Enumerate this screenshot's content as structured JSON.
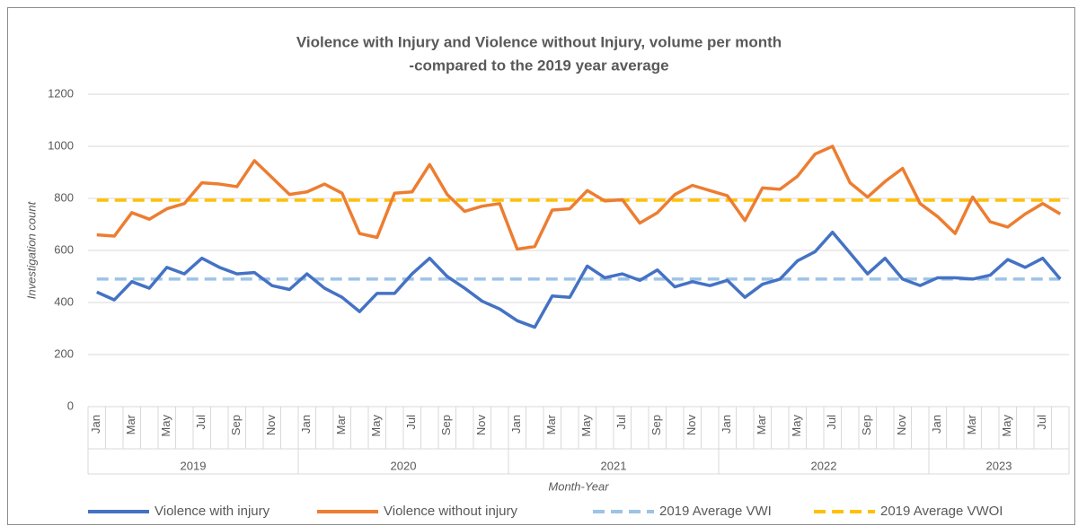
{
  "chart_data": {
    "type": "line",
    "title": [
      "Violence with Injury and Violence without Injury, volume per month",
      "-compared to the 2019 year average"
    ],
    "y_label": "Investigation count",
    "x_label": "Month-Year",
    "categories": [
      "Jan",
      null,
      "Mar",
      null,
      "May",
      null,
      "Jul",
      null,
      "Sep",
      null,
      "Nov",
      null,
      "Jan",
      null,
      "Mar",
      null,
      "May",
      null,
      "Jul",
      null,
      "Sep",
      null,
      "Nov",
      null,
      "Jan",
      null,
      "Mar",
      null,
      "May",
      null,
      "Jul",
      null,
      "Sep",
      null,
      "Nov",
      null,
      "Jan",
      null,
      "Mar",
      null,
      "May",
      null,
      "Jul",
      null,
      "Sep",
      null,
      "Nov",
      null,
      "Jan",
      null,
      "Mar",
      null,
      "May",
      null,
      "Jul",
      null
    ],
    "x_groups": [
      {
        "label": "2019",
        "start": 0,
        "end": 11
      },
      {
        "label": "2020",
        "start": 12,
        "end": 23
      },
      {
        "label": "2021",
        "start": 24,
        "end": 35
      },
      {
        "label": "2022",
        "start": 36,
        "end": 47
      },
      {
        "label": "2023",
        "start": 48,
        "end": 55
      }
    ],
    "ylim": [
      0,
      1200
    ],
    "yticks": [
      0,
      200,
      400,
      600,
      800,
      1000,
      1200
    ],
    "grid": true,
    "legend": "bottom",
    "series": [
      {
        "name": "Violence with injury",
        "color": "#4472c4",
        "dash": false,
        "values": [
          440,
          410,
          480,
          455,
          535,
          510,
          570,
          535,
          510,
          515,
          465,
          450,
          510,
          455,
          420,
          365,
          435,
          435,
          510,
          570,
          500,
          455,
          405,
          375,
          330,
          305,
          425,
          420,
          540,
          495,
          510,
          485,
          525,
          460,
          480,
          465,
          485,
          420,
          470,
          490,
          560,
          595,
          670,
          590,
          510,
          570,
          490,
          465,
          495,
          495,
          490,
          505,
          565,
          535,
          570,
          490
        ]
      },
      {
        "name": "Violence without injury",
        "color": "#ed7d31",
        "dash": false,
        "values": [
          660,
          655,
          745,
          720,
          760,
          780,
          860,
          855,
          845,
          945,
          880,
          815,
          825,
          855,
          820,
          665,
          650,
          820,
          825,
          930,
          815,
          750,
          770,
          780,
          605,
          615,
          755,
          760,
          830,
          790,
          795,
          705,
          745,
          815,
          850,
          830,
          810,
          715,
          840,
          835,
          885,
          970,
          1000,
          860,
          805,
          865,
          915,
          780,
          730,
          665,
          805,
          710,
          690,
          740,
          780,
          740
        ]
      },
      {
        "name": "2019 Average VWI",
        "color": "#9dc3e6",
        "dash": true,
        "values": [
          490,
          490,
          490,
          490,
          490,
          490,
          490,
          490,
          490,
          490,
          490,
          490,
          490,
          490,
          490,
          490,
          490,
          490,
          490,
          490,
          490,
          490,
          490,
          490,
          490,
          490,
          490,
          490,
          490,
          490,
          490,
          490,
          490,
          490,
          490,
          490,
          490,
          490,
          490,
          490,
          490,
          490,
          490,
          490,
          490,
          490,
          490,
          490,
          490,
          490,
          490,
          490,
          490,
          490,
          490,
          490
        ]
      },
      {
        "name": "2019 Average VWOI",
        "color": "#ffc000",
        "dash": true,
        "values": [
          793,
          793,
          793,
          793,
          793,
          793,
          793,
          793,
          793,
          793,
          793,
          793,
          793,
          793,
          793,
          793,
          793,
          793,
          793,
          793,
          793,
          793,
          793,
          793,
          793,
          793,
          793,
          793,
          793,
          793,
          793,
          793,
          793,
          793,
          793,
          793,
          793,
          793,
          793,
          793,
          793,
          793,
          793,
          793,
          793,
          793,
          793,
          793,
          793,
          793,
          793,
          793,
          793,
          793,
          793,
          793
        ]
      }
    ]
  }
}
